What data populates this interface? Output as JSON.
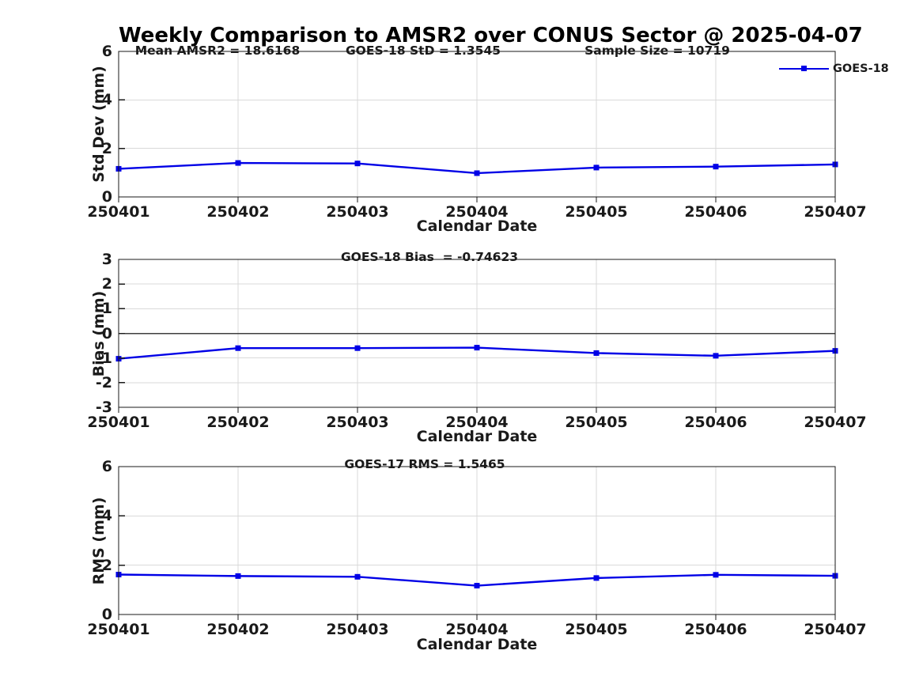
{
  "page": {
    "title": "Weekly Comparison to AMSR2 over CONUS Sector @ 2025-04-07"
  },
  "legend": {
    "series_label": "GOES-18"
  },
  "colors": {
    "line": "#0000e6",
    "grid": "#d9d9d9",
    "axis": "#1a1a1a",
    "text": "#1a1a1a",
    "zero_line": "#3f3f3f",
    "background": "#ffffff"
  },
  "chart_data": [
    {
      "type": "line",
      "panel": "std-dev",
      "annotations": [
        {
          "text": "Mean AMSR2 = 18.6168"
        },
        {
          "text": "GOES-18 StD = 1.3545"
        },
        {
          "text": "Sample Size = 10719"
        }
      ],
      "categories": [
        "250401",
        "250402",
        "250403",
        "250404",
        "250405",
        "250406",
        "250407"
      ],
      "series": [
        {
          "name": "GOES-18",
          "color": "#0000e6",
          "marker": "square",
          "values": [
            1.16,
            1.4,
            1.38,
            0.98,
            1.21,
            1.25,
            1.34
          ]
        }
      ],
      "xlabel": "Calendar Date",
      "ylabel": "Std Dev (mm)",
      "ylim": [
        0,
        6
      ],
      "yticks": [
        0,
        2,
        4,
        6
      ],
      "grid": true,
      "zero_line": false,
      "legend_position": "top-right"
    },
    {
      "type": "line",
      "panel": "bias",
      "annotations": [
        {
          "text": "GOES-18 Bias  = -0.74623"
        }
      ],
      "categories": [
        "250401",
        "250402",
        "250403",
        "250404",
        "250405",
        "250406",
        "250407"
      ],
      "series": [
        {
          "name": "GOES-18",
          "color": "#0000e6",
          "marker": "square",
          "values": [
            -1.03,
            -0.6,
            -0.6,
            -0.58,
            -0.8,
            -0.91,
            -0.71
          ]
        }
      ],
      "xlabel": "Calendar Date",
      "ylabel": "Bias (mm)",
      "ylim": [
        -3,
        3
      ],
      "yticks": [
        -3,
        -2,
        -1,
        0,
        1,
        2,
        3
      ],
      "grid": true,
      "zero_line": true,
      "legend_position": "none"
    },
    {
      "type": "line",
      "panel": "rms",
      "annotations": [
        {
          "text": "GOES-17 RMS = 1.5465"
        }
      ],
      "categories": [
        "250401",
        "250402",
        "250403",
        "250404",
        "250405",
        "250406",
        "250407"
      ],
      "series": [
        {
          "name": "GOES-18",
          "color": "#0000e6",
          "marker": "square",
          "values": [
            1.62,
            1.56,
            1.53,
            1.17,
            1.48,
            1.61,
            1.57
          ]
        }
      ],
      "xlabel": "Calendar Date",
      "ylabel": "RMS (mm)",
      "ylim": [
        0,
        6
      ],
      "yticks": [
        0,
        2,
        4,
        6
      ],
      "grid": true,
      "zero_line": false,
      "legend_position": "none"
    }
  ]
}
